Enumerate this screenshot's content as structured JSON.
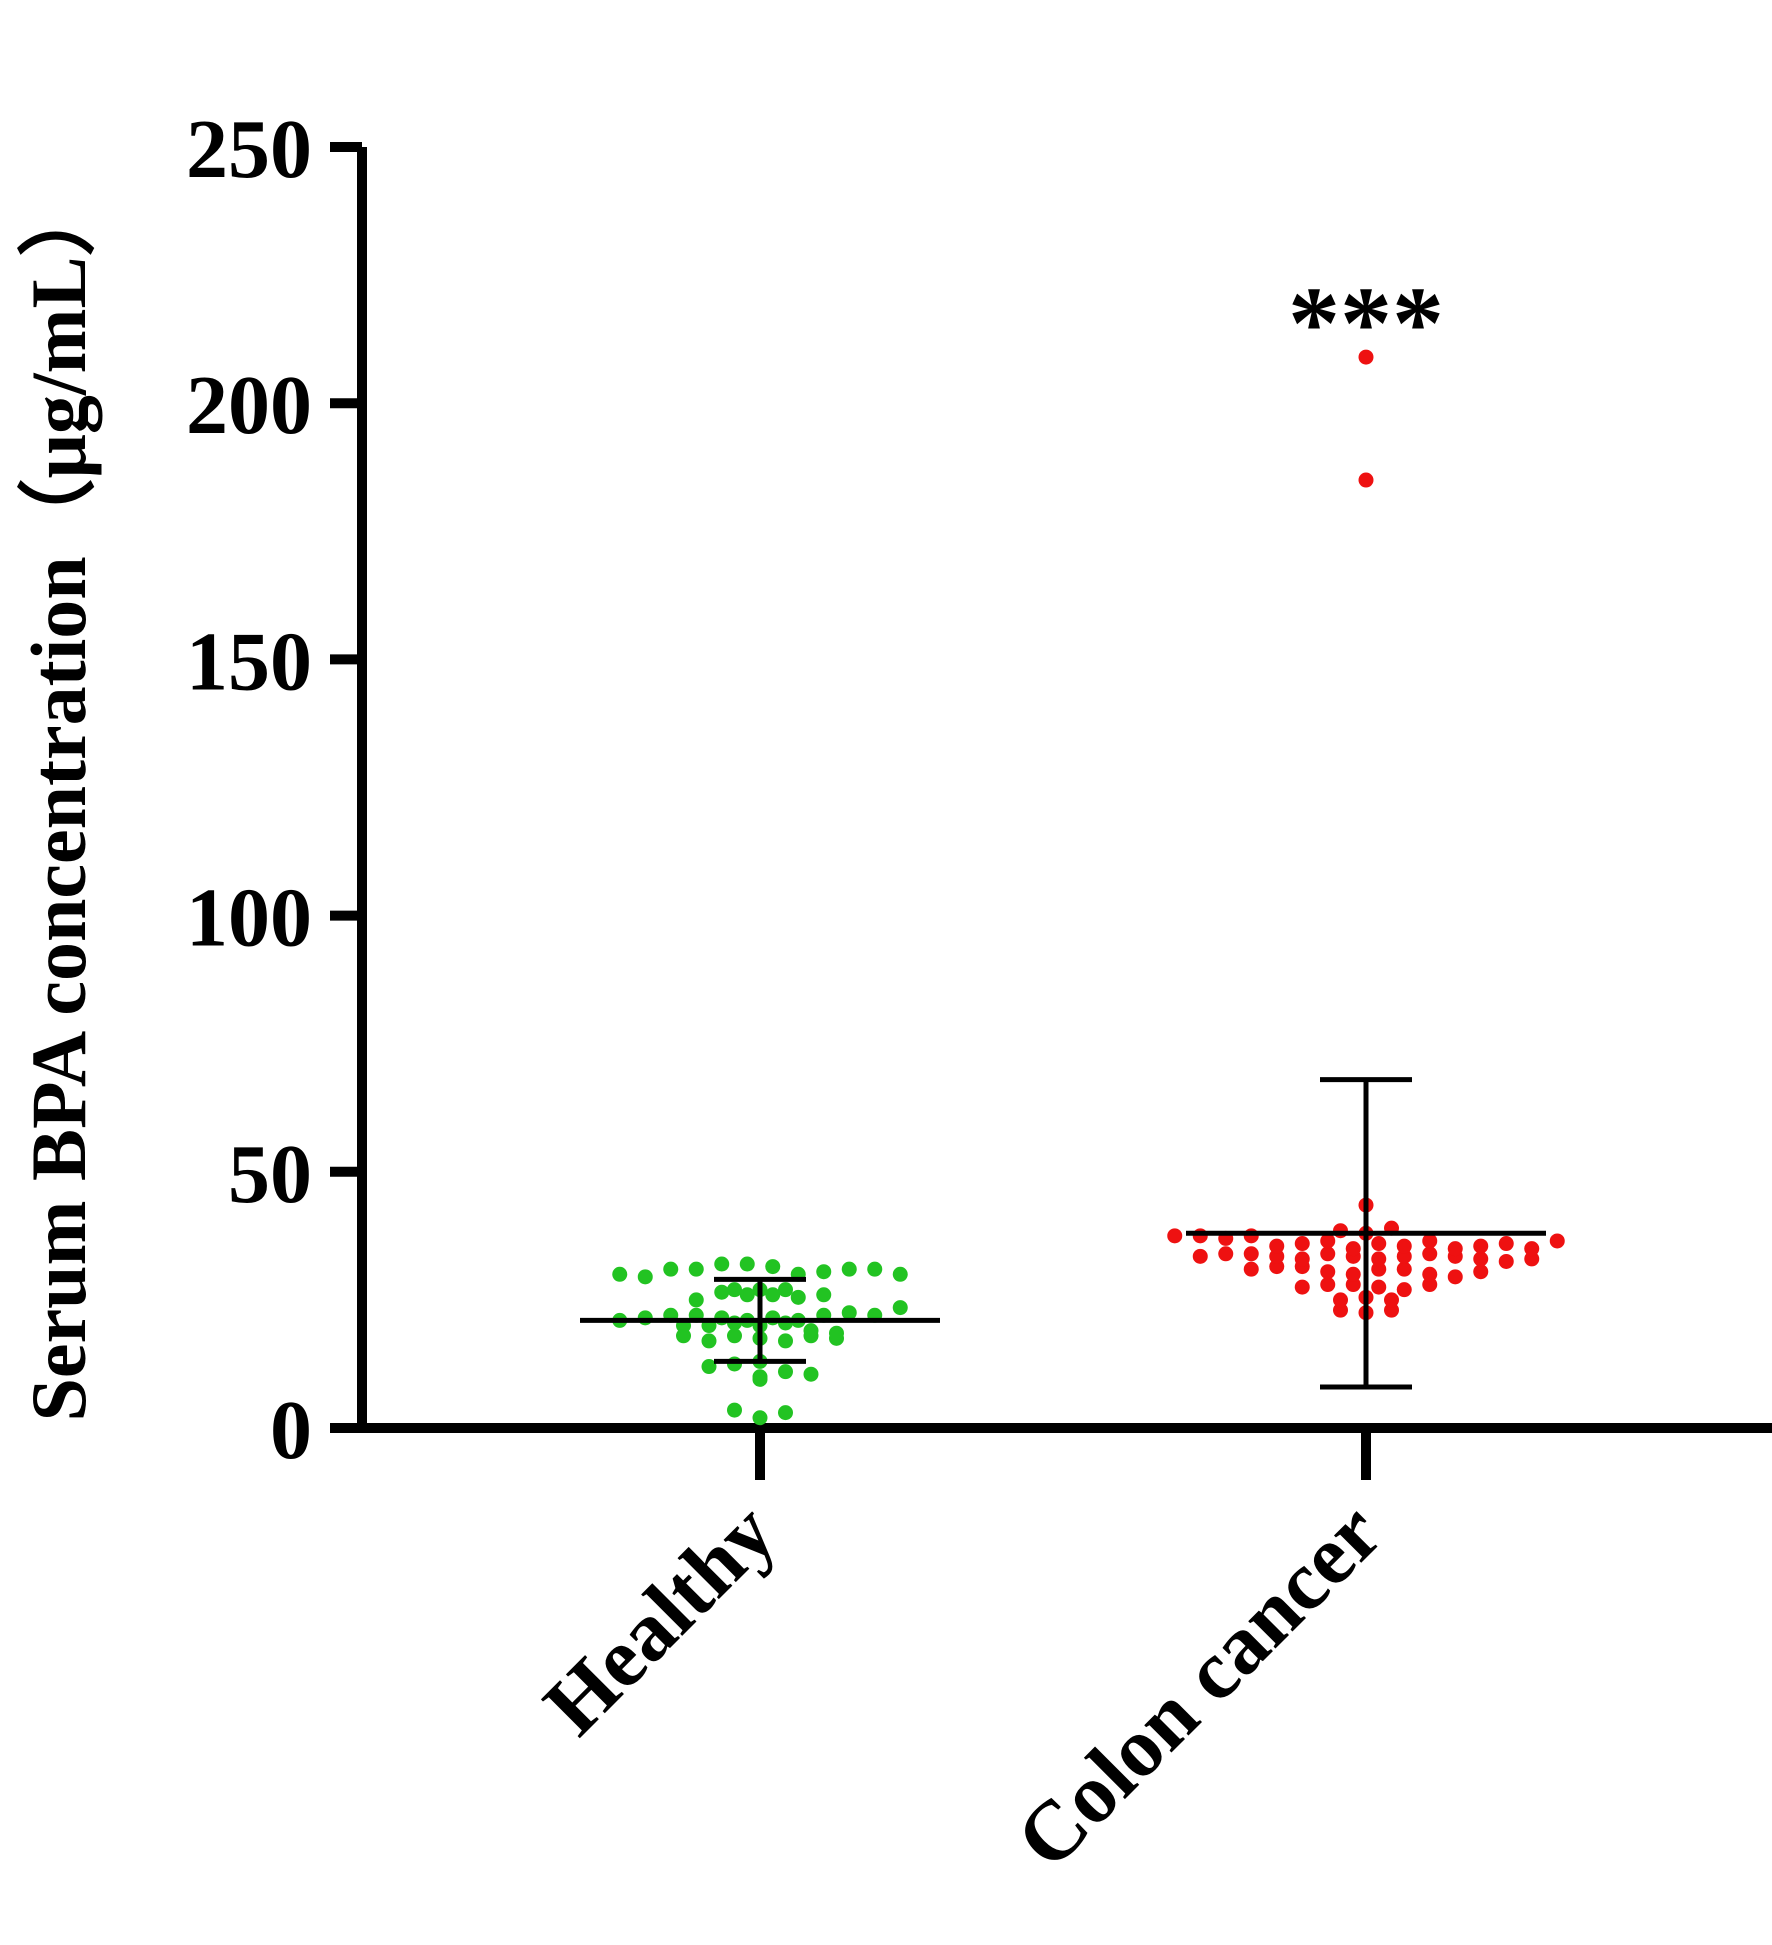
{
  "chart_data": {
    "type": "scatter",
    "subtype": "dot-plot-with-mean-and-sd",
    "title": "",
    "xlabel": "",
    "ylabel": "Serum BPA concentration（μg/mL）",
    "ylim": [
      0,
      250
    ],
    "yticks": [
      "0",
      "50",
      "100",
      "150",
      "200",
      "250"
    ],
    "categories": [
      "Healthy",
      "Colon cancer"
    ],
    "grid": false,
    "legend": "none",
    "significance_label": "***",
    "series": [
      {
        "category": "Healthy",
        "color": "#22c322",
        "mean": 21,
        "sd": 8,
        "values": [
          30,
          29.5,
          31,
          31,
          32,
          32,
          31.5,
          30,
          30.5,
          31,
          31,
          30,
          25,
          26.5,
          27,
          26,
          27,
          26,
          25.5,
          27,
          26,
          21,
          20,
          21.5,
          20,
          22,
          22,
          21.5,
          21,
          21.5,
          20.5,
          21,
          22,
          20,
          20.5,
          22.5,
          22,
          23.5,
          18,
          19,
          17,
          18,
          18.5,
          17.5,
          17,
          18,
          17.5,
          13,
          12,
          12.5,
          10,
          11,
          10.5,
          9.5,
          3.5,
          2,
          3
        ]
      },
      {
        "category": "Colon cancer",
        "color": "#ee1111",
        "mean": 38,
        "sd": 30,
        "values": [
          209,
          185,
          43.5,
          38.5,
          38,
          37.5,
          37.5,
          39,
          37,
          37.5,
          35.5,
          36,
          36.5,
          35,
          36,
          35.5,
          36.5,
          35,
          35.5,
          36,
          35,
          36.5,
          33.5,
          34,
          34,
          33.5,
          33,
          34,
          33.5,
          33,
          33.5,
          34,
          33.5,
          33,
          32.5,
          33,
          31,
          31.5,
          31.5,
          30.5,
          30,
          31,
          31,
          30,
          29.5,
          30.5,
          27.5,
          28,
          28,
          27.5,
          27,
          28,
          25,
          25.5,
          25,
          23,
          22.5,
          23
        ]
      }
    ]
  }
}
